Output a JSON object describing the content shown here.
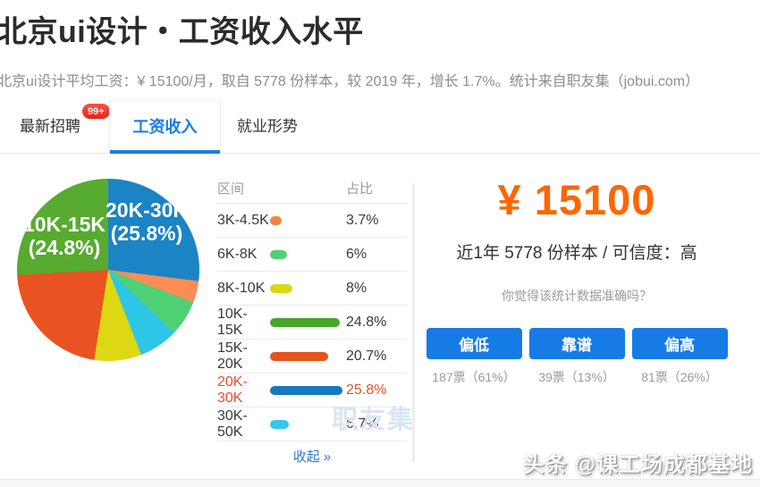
{
  "header": {
    "title": "北京ui设计・工资收入水平",
    "subtitle": "北京ui设计平均工资：¥ 15100/月，取自 5778 份样本，较 2019 年，增长 1.7%。统计来自职友集（jobui.com）"
  },
  "tabs": {
    "items": [
      {
        "label": "最新招聘",
        "badge": "99+",
        "active": false
      },
      {
        "label": "工资收入",
        "active": true
      },
      {
        "label": "就业形势",
        "active": false
      }
    ]
  },
  "chart_data": {
    "type": "pie",
    "unit": "%",
    "categories": [
      "3K-4.5K",
      "6K-8K",
      "8K-10K",
      "10K-15K",
      "15K-20K",
      "20K-30K",
      "30K-50K"
    ],
    "values": [
      3.7,
      6,
      8,
      24.8,
      20.7,
      25.8,
      6.7
    ],
    "colors": [
      "#f0853f",
      "#4ed175",
      "#ded714",
      "#57ab2f",
      "#e85321",
      "#1b84c5",
      "#2ec6e6"
    ],
    "draw_order_clockwise": [
      {
        "label": "20K-30K",
        "value": 25.8,
        "color": "#1b84c5"
      },
      {
        "label": "3K-4.5K",
        "value": 3.7,
        "color": "#fb8d55"
      },
      {
        "label": "6K-8K",
        "value": 6,
        "color": "#4ed175"
      },
      {
        "label": "30K-50K",
        "value": 6.7,
        "color": "#2ec6e6"
      },
      {
        "label": "8K-10K",
        "value": 8,
        "color": "#ded714"
      },
      {
        "label": "15K-20K",
        "value": 20.7,
        "color": "#e85321"
      },
      {
        "label": "10K-15K",
        "value": 24.8,
        "color": "#57ab2f"
      }
    ],
    "labels_on_pie": [
      {
        "line1": "20K-30K",
        "line2": "(25.8%)"
      },
      {
        "line1": "10K-15K",
        "line2": "(24.8%)"
      }
    ],
    "legend_position": "table-right-of-pie"
  },
  "table": {
    "headers": [
      "区间",
      "占比"
    ],
    "rows": [
      {
        "range": "3K-4.5K",
        "pct": "3.7%",
        "value": 3.7,
        "color": "#f0853f",
        "highlight": false
      },
      {
        "range": "6K-8K",
        "pct": "6%",
        "value": 6,
        "color": "#4ed175",
        "highlight": false
      },
      {
        "range": "8K-10K",
        "pct": "8%",
        "value": 8,
        "color": "#ded714",
        "highlight": false
      },
      {
        "range": "10K-15K",
        "pct": "24.8%",
        "value": 24.8,
        "color": "#46a52b",
        "highlight": false
      },
      {
        "range": "15K-20K",
        "pct": "20.7%",
        "value": 20.7,
        "color": "#e5521b",
        "highlight": false
      },
      {
        "range": "20K-30K",
        "pct": "25.8%",
        "value": 25.8,
        "color": "#1779bd",
        "highlight": true
      },
      {
        "range": "30K-50K",
        "pct": "6.7%",
        "value": 6.7,
        "color": "#35c9e9",
        "highlight": false
      }
    ],
    "collapse_label": "收起 »"
  },
  "summary": {
    "amount": "¥ 15100",
    "amount_color": "#ff6600",
    "sample": "近1年 5778 份样本 / 可信度：高",
    "question": "你觉得该统计数据准确吗？",
    "votes": [
      {
        "label": "偏低",
        "count": "187票（61%）"
      },
      {
        "label": "靠谱",
        "count": "39票（13%）"
      },
      {
        "label": "偏高",
        "count": "81票（26%）"
      }
    ],
    "button_color": "#177be6"
  },
  "watermarks": {
    "site": "职友集",
    "footer": "头条 @课工场成都基地"
  }
}
